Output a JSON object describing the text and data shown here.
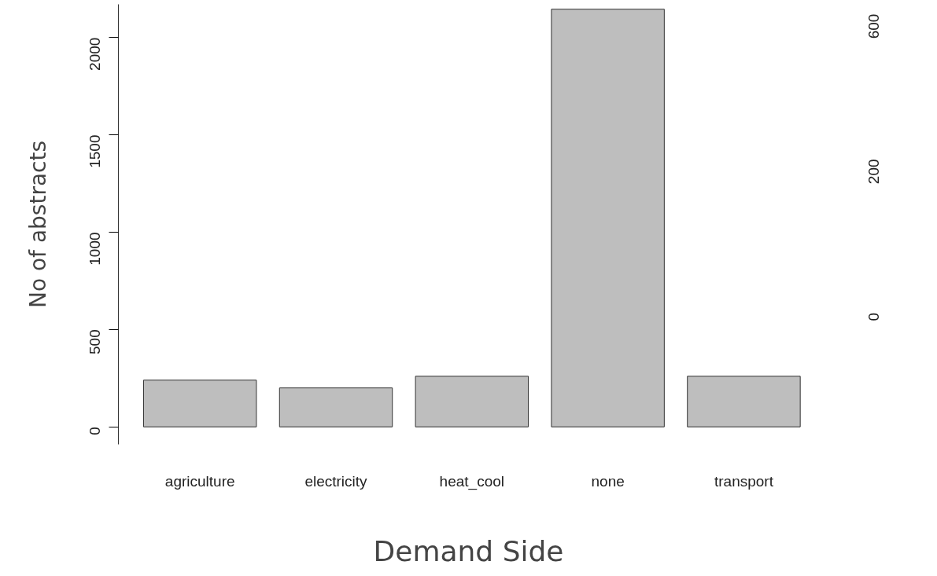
{
  "chart_data": [
    {
      "type": "bar",
      "xlabel": "Demand Side",
      "ylabel": "No of abstracts",
      "categories": [
        "agriculture",
        "electricity",
        "heat_cool",
        "none",
        "transport"
      ],
      "values": [
        240,
        200,
        260,
        2145,
        260
      ],
      "color": "#bebebe",
      "ylim": [
        -90,
        2170
      ],
      "yticks": [
        0,
        500,
        1000,
        1500,
        2000
      ],
      "grid": false
    },
    {
      "type": "other",
      "annotations": [
        "600",
        "200",
        "0"
      ]
    }
  ]
}
